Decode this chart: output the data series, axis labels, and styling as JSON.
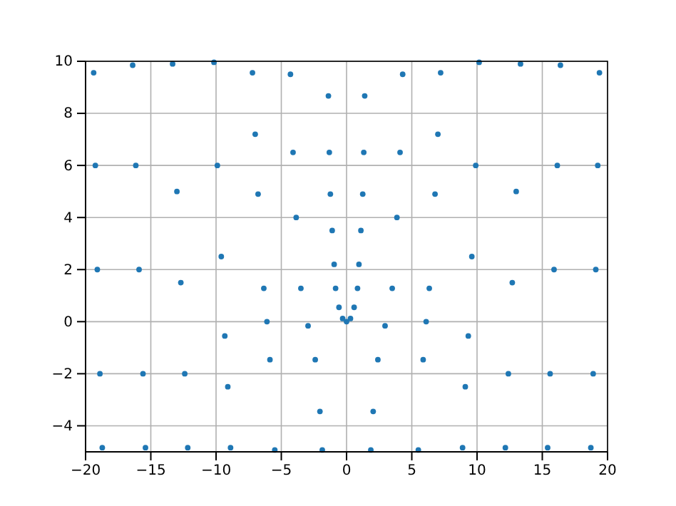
{
  "chart_data": {
    "type": "scatter",
    "marker": "circle",
    "grid": true,
    "xlim": [
      -20,
      20
    ],
    "ylim": [
      -5,
      10
    ],
    "xticks": [
      -20,
      -15,
      -10,
      -5,
      0,
      5,
      10,
      15,
      20
    ],
    "yticks": [
      -4,
      -2,
      0,
      2,
      4,
      6,
      8,
      10
    ],
    "series": [
      {
        "color": "#1f77b4",
        "x": [
          0,
          0.3,
          0.58,
          0.84,
          0.95,
          1.1,
          1.24,
          1.32,
          1.39,
          1.86,
          2.04,
          2.4,
          2.95,
          3.5,
          3.86,
          4.1,
          4.3,
          5.5,
          5.87,
          6.1,
          6.34,
          6.78,
          7,
          7.21,
          8.89,
          9.1,
          9.33,
          9.6,
          9.9,
          10.16,
          12.17,
          12.4,
          12.7,
          13,
          13.33,
          15.41,
          15.6,
          15.9,
          16.15,
          16.39,
          18.72,
          18.9,
          19.1,
          19.25,
          19.38,
          -0.3,
          -0.58,
          -0.84,
          -0.95,
          -1.1,
          -1.24,
          -1.32,
          -1.39,
          -1.86,
          -2.04,
          -2.4,
          -2.95,
          -3.5,
          -3.86,
          -4.1,
          -4.3,
          -5.5,
          -5.87,
          -6.1,
          -6.34,
          -6.78,
          -7,
          -7.21,
          -8.89,
          -9.1,
          -9.33,
          -9.6,
          -9.9,
          -10.16,
          -12.17,
          -12.4,
          -12.7,
          -13,
          -13.33,
          -15.41,
          -15.6,
          -15.9,
          -16.15,
          -16.39,
          -18.72,
          -18.9,
          -19.1,
          -19.25,
          -19.38
        ],
        "values": [
          0,
          0.12,
          0.55,
          1.28,
          2.2,
          3.5,
          4.9,
          6.5,
          8.67,
          -4.93,
          -3.45,
          -1.46,
          -0.16,
          1.28,
          4,
          6.5,
          9.5,
          -4.93,
          -1.46,
          0,
          1.28,
          4.9,
          7.2,
          9.56,
          -4.84,
          -2.5,
          -0.55,
          2.5,
          6,
          9.96,
          -4.84,
          -2,
          1.5,
          5,
          9.9,
          -4.84,
          -2,
          2,
          6,
          9.85,
          -4.84,
          -2,
          2,
          6,
          9.56,
          0.12,
          0.55,
          1.28,
          2.2,
          3.5,
          4.9,
          6.5,
          8.67,
          -4.93,
          -3.45,
          -1.46,
          -0.16,
          1.28,
          4,
          6.5,
          9.5,
          -4.93,
          -1.46,
          0,
          1.28,
          4.9,
          7.2,
          9.56,
          -4.84,
          -2.5,
          -0.55,
          2.5,
          6,
          9.96,
          -4.84,
          -2,
          1.5,
          5,
          9.9,
          -4.84,
          -2,
          2,
          6,
          9.85,
          -4.84,
          -2,
          2,
          6,
          9.56
        ]
      }
    ]
  }
}
